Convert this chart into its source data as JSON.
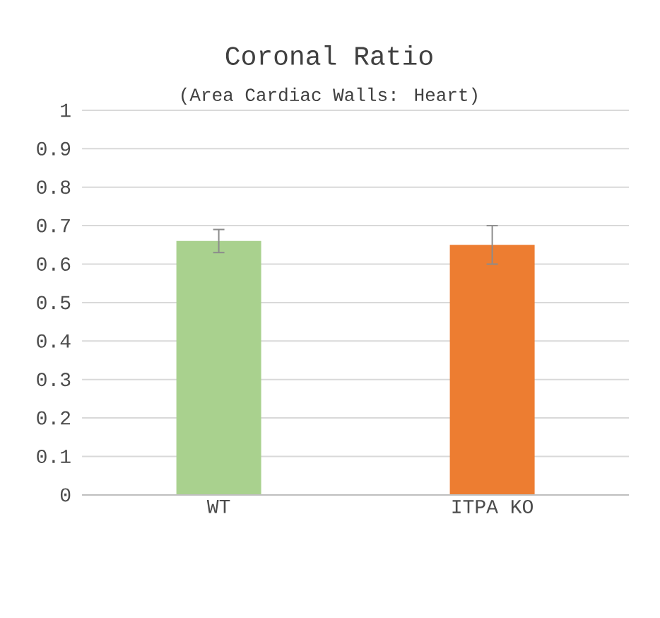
{
  "chart_data": {
    "type": "bar",
    "title": "Coronal Ratio",
    "subtitle": "(Area Cardiac Walls: Heart)",
    "categories": [
      "WT",
      "ITPA KO"
    ],
    "values": [
      0.66,
      0.65
    ],
    "colors": [
      "#a9d18e",
      "#ed7d31"
    ],
    "errors": [
      0.03,
      0.05
    ],
    "ylim": [
      0,
      1
    ],
    "yticks": [
      0,
      0.1,
      0.2,
      0.3,
      0.4,
      0.5,
      0.6,
      0.7,
      0.8,
      0.9,
      1
    ],
    "grid": "y"
  }
}
